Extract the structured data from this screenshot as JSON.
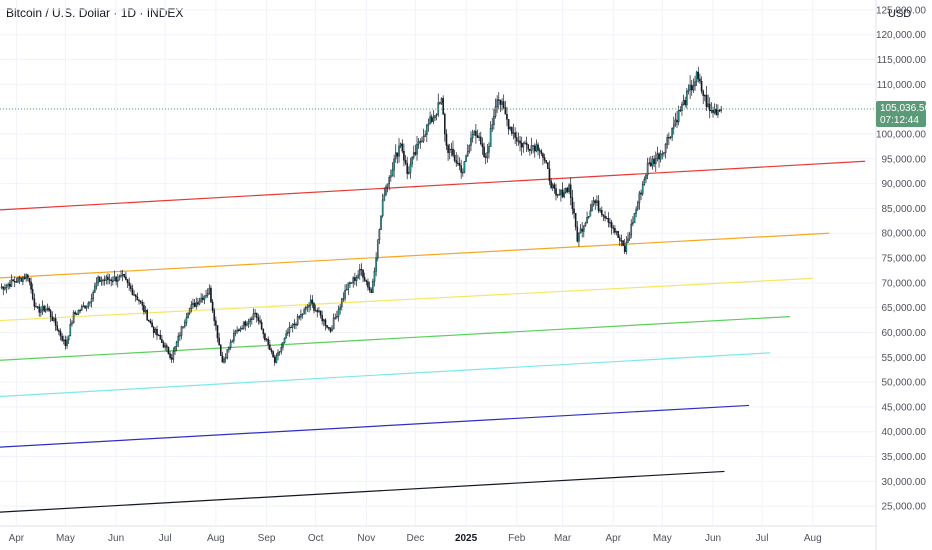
{
  "header": {
    "title": "Bitcoin / U.S. Dollar · 1D · INDEX",
    "currency": "USD"
  },
  "price_tag": {
    "price": "105,036.56",
    "countdown": "07:12:44",
    "value": 105036.56,
    "color": "#5b9a78"
  },
  "chart_data": {
    "type": "candlestick",
    "title": "Bitcoin / U.S. Dollar · 1D · INDEX",
    "ylim": [
      21000,
      127000
    ],
    "y_ticks": [
      {
        "v": 25000,
        "label": "25,000.00"
      },
      {
        "v": 30000,
        "label": "30,000.00"
      },
      {
        "v": 35000,
        "label": "35,000.00"
      },
      {
        "v": 40000,
        "label": "40,000.00"
      },
      {
        "v": 45000,
        "label": "45,000.00"
      },
      {
        "v": 50000,
        "label": "50,000.00"
      },
      {
        "v": 55000,
        "label": "55,000.00"
      },
      {
        "v": 60000,
        "label": "60,000.00"
      },
      {
        "v": 65000,
        "label": "65,000.00"
      },
      {
        "v": 70000,
        "label": "70,000.00"
      },
      {
        "v": 75000,
        "label": "75,000.00"
      },
      {
        "v": 80000,
        "label": "80,000.00"
      },
      {
        "v": 85000,
        "label": "85,000.00"
      },
      {
        "v": 90000,
        "label": "90,000.00"
      },
      {
        "v": 95000,
        "label": "95,000.00"
      },
      {
        "v": 100000,
        "label": "100,000.00"
      },
      {
        "v": 105000,
        "label": "105,000.00"
      },
      {
        "v": 110000,
        "label": "110,000.00"
      },
      {
        "v": 115000,
        "label": "115,000.00"
      },
      {
        "v": 120000,
        "label": "120,000.00"
      },
      {
        "v": 125000,
        "label": "125,000.00"
      }
    ],
    "x_ticks": [
      {
        "label": "Apr",
        "date": "2024-04-01"
      },
      {
        "label": "May",
        "date": "2024-05-01"
      },
      {
        "label": "Jun",
        "date": "2024-06-01"
      },
      {
        "label": "Jul",
        "date": "2024-07-01"
      },
      {
        "label": "Aug",
        "date": "2024-08-01"
      },
      {
        "label": "Sep",
        "date": "2024-09-01"
      },
      {
        "label": "Oct",
        "date": "2024-10-01"
      },
      {
        "label": "Nov",
        "date": "2024-11-01"
      },
      {
        "label": "Dec",
        "date": "2024-12-01"
      },
      {
        "label": "2025",
        "date": "2025-01-01",
        "bold": true
      },
      {
        "label": "Feb",
        "date": "2025-02-01"
      },
      {
        "label": "Mar",
        "date": "2025-03-01"
      },
      {
        "label": "Apr",
        "date": "2025-04-01"
      },
      {
        "label": "May",
        "date": "2025-05-01"
      },
      {
        "label": "Jun",
        "date": "2025-06-01"
      },
      {
        "label": "Jul",
        "date": "2025-07-01"
      },
      {
        "label": "Aug",
        "date": "2025-08-01"
      }
    ],
    "up_color": "#26a69a",
    "down_color": "#131722",
    "series": [
      {
        "date": "2024-03-22",
        "close": 69000
      },
      {
        "date": "2024-04-01",
        "close": 70500
      },
      {
        "date": "2024-04-08",
        "close": 71500
      },
      {
        "date": "2024-04-13",
        "close": 64500
      },
      {
        "date": "2024-04-20",
        "close": 64800
      },
      {
        "date": "2024-05-01",
        "close": 57500
      },
      {
        "date": "2024-05-06",
        "close": 63500
      },
      {
        "date": "2024-05-15",
        "close": 66000
      },
      {
        "date": "2024-05-21",
        "close": 70500
      },
      {
        "date": "2024-06-05",
        "close": 71000
      },
      {
        "date": "2024-06-15",
        "close": 66500
      },
      {
        "date": "2024-06-24",
        "close": 60500
      },
      {
        "date": "2024-07-05",
        "close": 55000
      },
      {
        "date": "2024-07-15",
        "close": 64500
      },
      {
        "date": "2024-07-28",
        "close": 68500
      },
      {
        "date": "2024-08-05",
        "close": 54000
      },
      {
        "date": "2024-08-13",
        "close": 60000
      },
      {
        "date": "2024-08-25",
        "close": 64000
      },
      {
        "date": "2024-09-06",
        "close": 54000
      },
      {
        "date": "2024-09-14",
        "close": 60000
      },
      {
        "date": "2024-09-28",
        "close": 66000
      },
      {
        "date": "2024-10-10",
        "close": 60500
      },
      {
        "date": "2024-10-20",
        "close": 69000
      },
      {
        "date": "2024-10-29",
        "close": 72500
      },
      {
        "date": "2024-11-04",
        "close": 68000
      },
      {
        "date": "2024-11-12",
        "close": 88500
      },
      {
        "date": "2024-11-22",
        "close": 98500
      },
      {
        "date": "2024-11-26",
        "close": 92000
      },
      {
        "date": "2024-12-05",
        "close": 99500
      },
      {
        "date": "2024-12-17",
        "close": 106500
      },
      {
        "date": "2024-12-20",
        "close": 97500
      },
      {
        "date": "2024-12-30",
        "close": 92500
      },
      {
        "date": "2025-01-06",
        "close": 101500
      },
      {
        "date": "2025-01-13",
        "close": 94500
      },
      {
        "date": "2025-01-20",
        "close": 108000
      },
      {
        "date": "2025-01-27",
        "close": 102000
      },
      {
        "date": "2025-02-03",
        "close": 98000
      },
      {
        "date": "2025-02-15",
        "close": 97500
      },
      {
        "date": "2025-02-25",
        "close": 87000
      },
      {
        "date": "2025-03-05",
        "close": 89500
      },
      {
        "date": "2025-03-10",
        "close": 79000
      },
      {
        "date": "2025-03-20",
        "close": 86500
      },
      {
        "date": "2025-03-30",
        "close": 82500
      },
      {
        "date": "2025-04-08",
        "close": 76500
      },
      {
        "date": "2025-04-15",
        "close": 85000
      },
      {
        "date": "2025-04-22",
        "close": 93500
      },
      {
        "date": "2025-05-01",
        "close": 96500
      },
      {
        "date": "2025-05-10",
        "close": 103500
      },
      {
        "date": "2025-05-22",
        "close": 111500
      },
      {
        "date": "2025-05-30",
        "close": 104500
      },
      {
        "date": "2025-06-06",
        "close": 105036.56
      }
    ],
    "trendlines": [
      {
        "color": "#e53935",
        "width": 1.2,
        "start": {
          "date": "2024-03-22",
          "value": 84700
        },
        "end": {
          "date": "2025-09-02",
          "value": 94500
        }
      },
      {
        "color": "#f5a623",
        "width": 1.2,
        "start": {
          "date": "2024-03-22",
          "value": 71000
        },
        "end": {
          "date": "2025-08-11",
          "value": 80000
        }
      },
      {
        "color": "#f5e663",
        "width": 1.2,
        "start": {
          "date": "2024-03-22",
          "value": 62400
        },
        "end": {
          "date": "2025-08-01",
          "value": 70900
        }
      },
      {
        "color": "#58d158",
        "width": 1.2,
        "start": {
          "date": "2024-03-22",
          "value": 54400
        },
        "end": {
          "date": "2025-07-18",
          "value": 63200
        }
      },
      {
        "color": "#7ee8e8",
        "width": 1.2,
        "start": {
          "date": "2024-03-22",
          "value": 47100
        },
        "end": {
          "date": "2025-07-06",
          "value": 55900
        }
      },
      {
        "color": "#3030c0",
        "width": 1.2,
        "start": {
          "date": "2024-03-22",
          "value": 36900
        },
        "end": {
          "date": "2025-06-23",
          "value": 45300
        }
      },
      {
        "color": "#131722",
        "width": 1.2,
        "start": {
          "date": "2024-03-22",
          "value": 23800
        },
        "end": {
          "date": "2025-06-08",
          "value": 32000
        }
      }
    ]
  }
}
